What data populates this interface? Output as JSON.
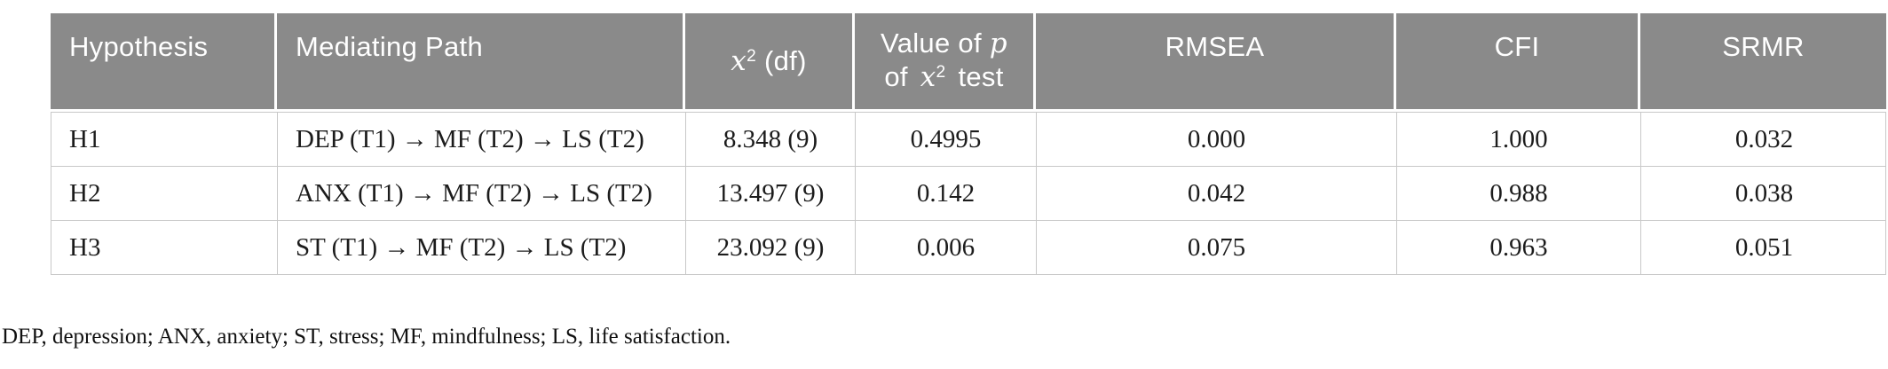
{
  "table": {
    "columns": {
      "hypothesis": "Hypothesis",
      "path": "Mediating Path",
      "chi_var": "x",
      "chi_sup": "2",
      "chi_rest": " (df)",
      "p_line1_pre": "Value of ",
      "p_var1": "p",
      "p_line2_pre": "of ",
      "p_var2": "x",
      "p_sup": "2",
      "p_line2_post": " test",
      "rmsea": "RMSEA",
      "cfi": "CFI",
      "srmr": "SRMR"
    },
    "rows": [
      {
        "hypothesis": "H1",
        "path": "DEP (T1) → MF (T2) → LS (T2)",
        "chi_df": "8.348 (9)",
        "p_value": "0.4995",
        "rmsea": "0.000",
        "cfi": "1.000",
        "srmr": "0.032"
      },
      {
        "hypothesis": "H2",
        "path": "ANX (T1) → MF (T2) → LS (T2)",
        "chi_df": "13.497 (9)",
        "p_value": "0.142",
        "rmsea": "0.042",
        "cfi": "0.988",
        "srmr": "0.038"
      },
      {
        "hypothesis": "H3",
        "path": "ST (T1) → MF (T2) → LS (T2)",
        "chi_df": "23.092 (9)",
        "p_value": "0.006",
        "rmsea": "0.075",
        "cfi": "0.963",
        "srmr": "0.051"
      }
    ]
  },
  "footnote": "DEP, depression; ANX, anxiety; ST, stress; MF, mindfulness; LS, life satisfaction.",
  "colors": {
    "header_bg": "#8a8a8a",
    "header_text": "#ffffff",
    "border": "#c8c8c8",
    "body_text": "#1c1c1c"
  }
}
